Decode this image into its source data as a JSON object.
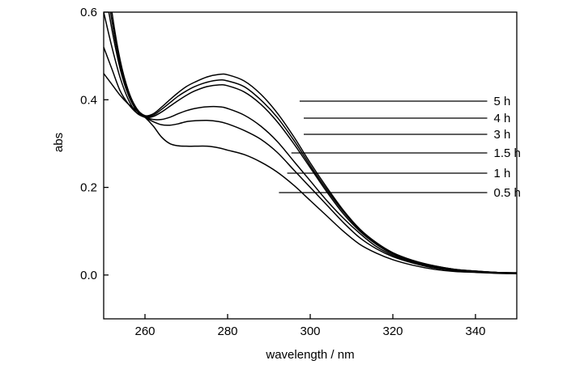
{
  "chart_data": {
    "type": "line",
    "xlabel": "wavelength / nm",
    "ylabel": "abs",
    "xlim": [
      250,
      350
    ],
    "ylim": [
      -0.1,
      0.6
    ],
    "xticks": [
      260,
      280,
      300,
      320,
      340
    ],
    "yticks": [
      0.0,
      0.2,
      0.4,
      0.6
    ],
    "ytick_labels": [
      "0.0",
      "0.2",
      "0.4",
      "0.6"
    ],
    "grid": false,
    "series": [
      {
        "name": "0.5 h",
        "label_at_x": 294,
        "x": [
          250,
          252,
          254,
          256,
          258,
          260,
          262,
          264,
          266,
          268,
          270,
          272,
          275,
          278,
          280,
          284,
          288,
          292,
          296,
          300,
          304,
          308,
          312,
          316,
          320,
          325,
          330,
          335,
          340,
          345,
          350
        ],
        "y": [
          0.46,
          0.435,
          0.41,
          0.39,
          0.375,
          0.36,
          0.34,
          0.315,
          0.3,
          0.295,
          0.294,
          0.294,
          0.294,
          0.29,
          0.285,
          0.275,
          0.258,
          0.235,
          0.205,
          0.17,
          0.135,
          0.1,
          0.07,
          0.05,
          0.035,
          0.022,
          0.013,
          0.008,
          0.006,
          0.004,
          0.003
        ]
      },
      {
        "name": "1 h",
        "label_at_x": 296,
        "x": [
          250,
          252,
          254,
          256,
          258,
          260,
          262,
          264,
          266,
          268,
          270,
          272,
          275,
          278,
          280,
          284,
          288,
          292,
          296,
          300,
          304,
          308,
          312,
          316,
          320,
          325,
          330,
          335,
          340,
          345,
          350
        ],
        "y": [
          0.52,
          0.47,
          0.42,
          0.39,
          0.37,
          0.36,
          0.35,
          0.343,
          0.342,
          0.345,
          0.35,
          0.352,
          0.353,
          0.35,
          0.345,
          0.33,
          0.31,
          0.28,
          0.24,
          0.2,
          0.16,
          0.12,
          0.085,
          0.06,
          0.042,
          0.027,
          0.016,
          0.01,
          0.007,
          0.005,
          0.004
        ]
      },
      {
        "name": "1.5 h",
        "label_at_x": 297,
        "x": [
          250,
          252,
          254,
          256,
          258,
          260,
          262,
          264,
          266,
          268,
          270,
          272,
          275,
          278,
          280,
          284,
          288,
          292,
          296,
          300,
          304,
          308,
          312,
          316,
          320,
          325,
          330,
          335,
          340,
          345,
          350
        ],
        "y": [
          0.6,
          0.52,
          0.45,
          0.4,
          0.37,
          0.36,
          0.355,
          0.355,
          0.36,
          0.368,
          0.375,
          0.38,
          0.384,
          0.384,
          0.38,
          0.365,
          0.34,
          0.305,
          0.26,
          0.215,
          0.17,
          0.13,
          0.095,
          0.065,
          0.045,
          0.029,
          0.018,
          0.011,
          0.008,
          0.006,
          0.004
        ]
      },
      {
        "name": "3 h",
        "label_at_x": 300,
        "x": [
          250,
          252,
          254,
          256,
          258,
          260,
          262,
          264,
          266,
          268,
          270,
          272,
          275,
          278,
          280,
          284,
          288,
          292,
          296,
          300,
          304,
          308,
          312,
          316,
          320,
          325,
          330,
          335,
          340,
          345,
          350
        ],
        "y": [
          0.67,
          0.56,
          0.47,
          0.41,
          0.375,
          0.36,
          0.362,
          0.372,
          0.385,
          0.398,
          0.41,
          0.42,
          0.43,
          0.434,
          0.432,
          0.418,
          0.39,
          0.35,
          0.3,
          0.245,
          0.19,
          0.14,
          0.1,
          0.07,
          0.048,
          0.031,
          0.02,
          0.012,
          0.009,
          0.006,
          0.005
        ]
      },
      {
        "name": "4 h",
        "label_at_x": 300,
        "x": [
          250,
          252,
          254,
          256,
          258,
          260,
          262,
          264,
          266,
          268,
          270,
          272,
          275,
          278,
          280,
          284,
          288,
          292,
          296,
          300,
          304,
          308,
          312,
          316,
          320,
          325,
          330,
          335,
          340,
          345,
          350
        ],
        "y": [
          0.71,
          0.58,
          0.48,
          0.415,
          0.378,
          0.362,
          0.365,
          0.378,
          0.393,
          0.408,
          0.42,
          0.43,
          0.44,
          0.445,
          0.443,
          0.43,
          0.4,
          0.36,
          0.308,
          0.25,
          0.195,
          0.145,
          0.103,
          0.072,
          0.05,
          0.032,
          0.021,
          0.013,
          0.009,
          0.006,
          0.005
        ]
      },
      {
        "name": "5 h",
        "label_at_x": 299,
        "x": [
          250,
          252,
          254,
          256,
          258,
          260,
          262,
          264,
          266,
          268,
          270,
          272,
          275,
          278,
          280,
          284,
          288,
          292,
          296,
          300,
          304,
          308,
          312,
          316,
          320,
          325,
          330,
          335,
          340,
          345,
          350
        ],
        "y": [
          0.75,
          0.6,
          0.49,
          0.42,
          0.38,
          0.364,
          0.368,
          0.383,
          0.4,
          0.416,
          0.43,
          0.44,
          0.452,
          0.458,
          0.457,
          0.443,
          0.413,
          0.37,
          0.316,
          0.256,
          0.2,
          0.148,
          0.105,
          0.074,
          0.051,
          0.033,
          0.021,
          0.013,
          0.009,
          0.006,
          0.005
        ]
      }
    ],
    "label_x": 315
  }
}
